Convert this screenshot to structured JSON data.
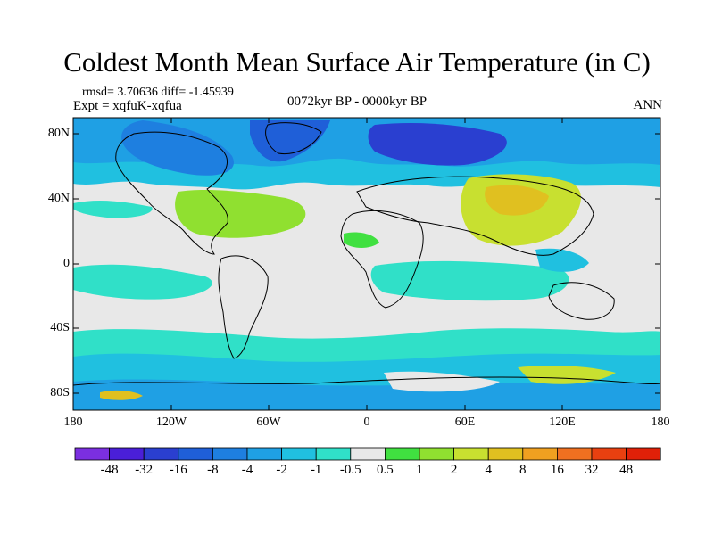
{
  "title": "Coldest Month Mean Surface Air Temperature (in C)",
  "stats": "rmsd= 3.70636 diff= -1.45939",
  "experiment": "Expt = xqfuK-xqfua",
  "period": "0072kyr BP - 0000kyr BP",
  "season": "ANN",
  "lat_ticks": [
    "80N",
    "40N",
    "0",
    "40S",
    "80S"
  ],
  "lon_ticks": [
    "180",
    "120W",
    "60W",
    "0",
    "60E",
    "120E",
    "180"
  ],
  "colorbar": {
    "labels": [
      "-48",
      "-32",
      "-16",
      "-8",
      "-4",
      "-2",
      "-1",
      "-0.5",
      "0.5",
      "1",
      "2",
      "4",
      "8",
      "16",
      "32",
      "48"
    ],
    "colors": [
      "#7b2fe0",
      "#4a1fd8",
      "#2a3fd0",
      "#1f5fd8",
      "#1e7fe0",
      "#1fa0e4",
      "#20c0e0",
      "#30e0c8",
      "#e8e8e8",
      "#40e040",
      "#90e030",
      "#c8e030",
      "#e0c020",
      "#f0a020",
      "#f07020",
      "#e84010",
      "#e02008"
    ]
  },
  "colors": {
    "background_ocean": "#e8e8e8",
    "coastline": "#000000"
  }
}
